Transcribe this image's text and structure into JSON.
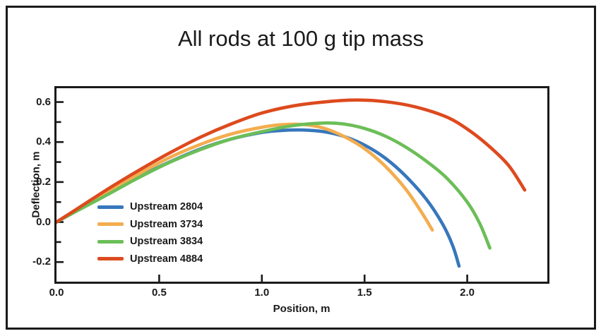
{
  "title": "All rods at 100 g tip mass",
  "colors": {
    "frame_border": "#1a1a1a",
    "axis": "#1a1a1a",
    "text": "#1a1a1a",
    "background": "#ffffff"
  },
  "chart_data": {
    "type": "line",
    "title": "All rods at 100 g tip mass",
    "xlabel": "Position, m",
    "ylabel": "Deflection, m",
    "xlim": [
      0,
      2.39
    ],
    "ylim": [
      -0.298,
      0.669
    ],
    "grid": false,
    "legend_position": "inside lower-left",
    "x_tick_labels": [
      "0.0",
      "0.5",
      "1.0",
      "1.5",
      "2.0"
    ],
    "x_tick_values": [
      0,
      0.5,
      1.0,
      1.5,
      2.0
    ],
    "y_tick_labels": [
      "0.6",
      "0.4",
      "0.2",
      "0.0",
      "-0.2"
    ],
    "y_tick_values": [
      0.6,
      0.4,
      0.2,
      0.0,
      -0.2
    ],
    "y_minor_tick_values": [
      0.5,
      0.3,
      0.1,
      -0.1
    ],
    "series": [
      {
        "name": "Upstream 2804",
        "color": "#3777BC",
        "points": [
          [
            0,
            0
          ],
          [
            0.1,
            0.057
          ],
          [
            0.25,
            0.14
          ],
          [
            0.4,
            0.225
          ],
          [
            0.55,
            0.3
          ],
          [
            0.7,
            0.365
          ],
          [
            0.85,
            0.415
          ],
          [
            1.0,
            0.448
          ],
          [
            1.1,
            0.458
          ],
          [
            1.2,
            0.46
          ],
          [
            1.3,
            0.452
          ],
          [
            1.4,
            0.428
          ],
          [
            1.5,
            0.385
          ],
          [
            1.6,
            0.32
          ],
          [
            1.7,
            0.23
          ],
          [
            1.8,
            0.115
          ],
          [
            1.88,
            -0.01
          ],
          [
            1.93,
            -0.12
          ],
          [
            1.96,
            -0.22
          ]
        ]
      },
      {
        "name": "Upstream 3734",
        "color": "#F3AD4F",
        "points": [
          [
            0,
            0
          ],
          [
            0.1,
            0.062
          ],
          [
            0.25,
            0.152
          ],
          [
            0.4,
            0.24
          ],
          [
            0.55,
            0.322
          ],
          [
            0.7,
            0.388
          ],
          [
            0.85,
            0.44
          ],
          [
            1.0,
            0.474
          ],
          [
            1.1,
            0.487
          ],
          [
            1.2,
            0.488
          ],
          [
            1.3,
            0.47
          ],
          [
            1.4,
            0.428
          ],
          [
            1.5,
            0.367
          ],
          [
            1.6,
            0.28
          ],
          [
            1.7,
            0.165
          ],
          [
            1.78,
            0.045
          ],
          [
            1.83,
            -0.04
          ]
        ]
      },
      {
        "name": "Upstream 3834",
        "color": "#6CBE58",
        "points": [
          [
            0,
            0
          ],
          [
            0.1,
            0.056
          ],
          [
            0.25,
            0.138
          ],
          [
            0.4,
            0.222
          ],
          [
            0.55,
            0.298
          ],
          [
            0.7,
            0.362
          ],
          [
            0.85,
            0.415
          ],
          [
            1.0,
            0.452
          ],
          [
            1.15,
            0.482
          ],
          [
            1.3,
            0.495
          ],
          [
            1.4,
            0.49
          ],
          [
            1.5,
            0.468
          ],
          [
            1.6,
            0.43
          ],
          [
            1.7,
            0.375
          ],
          [
            1.8,
            0.305
          ],
          [
            1.9,
            0.22
          ],
          [
            2.0,
            0.1
          ],
          [
            2.06,
            -0.005
          ],
          [
            2.11,
            -0.13
          ]
        ]
      },
      {
        "name": "Upstream 4884",
        "color": "#DD4A1E",
        "points": [
          [
            0,
            0
          ],
          [
            0.1,
            0.066
          ],
          [
            0.25,
            0.165
          ],
          [
            0.4,
            0.258
          ],
          [
            0.55,
            0.345
          ],
          [
            0.7,
            0.424
          ],
          [
            0.85,
            0.49
          ],
          [
            1.0,
            0.545
          ],
          [
            1.15,
            0.58
          ],
          [
            1.3,
            0.6
          ],
          [
            1.45,
            0.61
          ],
          [
            1.6,
            0.602
          ],
          [
            1.75,
            0.575
          ],
          [
            1.9,
            0.525
          ],
          [
            2.0,
            0.465
          ],
          [
            2.1,
            0.385
          ],
          [
            2.2,
            0.285
          ],
          [
            2.28,
            0.16
          ]
        ]
      }
    ]
  }
}
